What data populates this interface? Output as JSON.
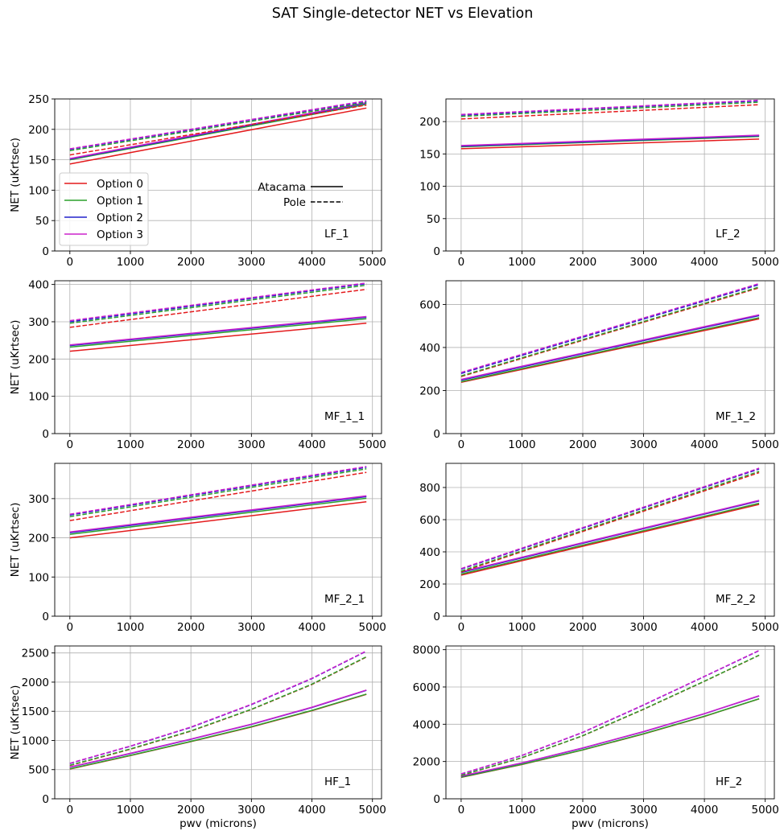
{
  "figure": {
    "suptitle": "SAT Single-detector NET vs Elevation"
  },
  "colors": {
    "Option 0": "#e41a1c",
    "Option 1": "#2ca02c",
    "Option 2": "#2222cc",
    "Option 3": "#cc22cc"
  },
  "legend_options": {
    "placement": "lower-left (LF_1 panel)",
    "entries": [
      "Option 0",
      "Option 1",
      "Option 2",
      "Option 3"
    ]
  },
  "legend_sites": {
    "placement": "center-right (LF_1 panel)",
    "entries": [
      {
        "label": "Atacama",
        "style": "solid"
      },
      {
        "label": "Pole",
        "style": "dashed"
      }
    ]
  },
  "chart_data": [
    {
      "type": "line",
      "panel": "LF_1",
      "ylabel": "NET (uKrtsec)",
      "xlabel": "",
      "x": [
        0,
        4900
      ],
      "xlim": [
        -250,
        5150
      ],
      "ylim": [
        0,
        250
      ],
      "xticks": [
        0,
        1000,
        2000,
        3000,
        4000,
        5000
      ],
      "yticks": [
        0,
        50,
        100,
        150,
        200,
        250
      ],
      "grid": true,
      "series": [
        {
          "name": "Option 0",
          "site": "Atacama",
          "values": [
            143,
            235
          ]
        },
        {
          "name": "Option 1",
          "site": "Atacama",
          "values": [
            150,
            241
          ]
        },
        {
          "name": "Option 2",
          "site": "Atacama",
          "values": [
            151,
            243
          ]
        },
        {
          "name": "Option 3",
          "site": "Atacama",
          "values": [
            152,
            244
          ]
        },
        {
          "name": "Option 0",
          "site": "Pole",
          "values": [
            158,
            240
          ]
        },
        {
          "name": "Option 1",
          "site": "Pole",
          "values": [
            165,
            244
          ]
        },
        {
          "name": "Option 2",
          "site": "Pole",
          "values": [
            167,
            246
          ]
        },
        {
          "name": "Option 3",
          "site": "Pole",
          "values": [
            168,
            247
          ]
        }
      ]
    },
    {
      "type": "line",
      "panel": "LF_2",
      "ylabel": "",
      "xlabel": "",
      "x": [
        0,
        4900
      ],
      "xlim": [
        -250,
        5150
      ],
      "ylim": [
        0,
        235
      ],
      "xticks": [
        0,
        1000,
        2000,
        3000,
        4000,
        5000
      ],
      "yticks": [
        0,
        50,
        100,
        150,
        200
      ],
      "grid": true,
      "series": [
        {
          "name": "Option 0",
          "site": "Atacama",
          "values": [
            158,
            173
          ]
        },
        {
          "name": "Option 1",
          "site": "Atacama",
          "values": [
            161,
            177
          ]
        },
        {
          "name": "Option 2",
          "site": "Atacama",
          "values": [
            162,
            178
          ]
        },
        {
          "name": "Option 3",
          "site": "Atacama",
          "values": [
            163,
            179
          ]
        },
        {
          "name": "Option 0",
          "site": "Pole",
          "values": [
            204,
            226
          ]
        },
        {
          "name": "Option 1",
          "site": "Pole",
          "values": [
            208,
            230
          ]
        },
        {
          "name": "Option 2",
          "site": "Pole",
          "values": [
            210,
            232
          ]
        },
        {
          "name": "Option 3",
          "site": "Pole",
          "values": [
            211,
            233
          ]
        }
      ]
    },
    {
      "type": "line",
      "panel": "MF_1_1",
      "ylabel": "NET (uKrtsec)",
      "xlabel": "",
      "x": [
        0,
        4900
      ],
      "xlim": [
        -250,
        5150
      ],
      "ylim": [
        0,
        410
      ],
      "xticks": [
        0,
        1000,
        2000,
        3000,
        4000,
        5000
      ],
      "yticks": [
        0,
        100,
        200,
        300,
        400
      ],
      "grid": true,
      "series": [
        {
          "name": "Option 0",
          "site": "Atacama",
          "values": [
            221,
            296
          ]
        },
        {
          "name": "Option 1",
          "site": "Atacama",
          "values": [
            232,
            308
          ]
        },
        {
          "name": "Option 2",
          "site": "Atacama",
          "values": [
            236,
            312
          ]
        },
        {
          "name": "Option 3",
          "site": "Atacama",
          "values": [
            238,
            314
          ]
        },
        {
          "name": "Option 0",
          "site": "Pole",
          "values": [
            285,
            387
          ]
        },
        {
          "name": "Option 1",
          "site": "Pole",
          "values": [
            296,
            398
          ]
        },
        {
          "name": "Option 2",
          "site": "Pole",
          "values": [
            300,
            402
          ]
        },
        {
          "name": "Option 3",
          "site": "Pole",
          "values": [
            303,
            404
          ]
        }
      ]
    },
    {
      "type": "line",
      "panel": "MF_1_2",
      "ylabel": "",
      "xlabel": "",
      "x": [
        0,
        4900
      ],
      "xlim": [
        -250,
        5150
      ],
      "ylim": [
        0,
        710
      ],
      "xticks": [
        0,
        1000,
        2000,
        3000,
        4000,
        5000
      ],
      "yticks": [
        0,
        200,
        400,
        600
      ],
      "grid": true,
      "series": [
        {
          "name": "Option 0",
          "site": "Atacama",
          "values": [
            238,
            533
          ]
        },
        {
          "name": "Option 1",
          "site": "Atacama",
          "values": [
            241,
            538
          ]
        },
        {
          "name": "Option 2",
          "site": "Atacama",
          "values": [
            248,
            548
          ]
        },
        {
          "name": "Option 3",
          "site": "Atacama",
          "values": [
            252,
            552
          ]
        },
        {
          "name": "Option 0",
          "site": "Pole",
          "values": [
            265,
            677
          ]
        },
        {
          "name": "Option 1",
          "site": "Pole",
          "values": [
            268,
            681
          ]
        },
        {
          "name": "Option 2",
          "site": "Pole",
          "values": [
            279,
            692
          ]
        },
        {
          "name": "Option 3",
          "site": "Pole",
          "values": [
            284,
            697
          ]
        }
      ]
    },
    {
      "type": "line",
      "panel": "MF_2_1",
      "ylabel": "NET (uKrtsec)",
      "xlabel": "",
      "x": [
        0,
        4900
      ],
      "xlim": [
        -250,
        5150
      ],
      "ylim": [
        0,
        390
      ],
      "xticks": [
        0,
        1000,
        2000,
        3000,
        4000,
        5000
      ],
      "yticks": [
        0,
        100,
        200,
        300
      ],
      "grid": true,
      "series": [
        {
          "name": "Option 0",
          "site": "Atacama",
          "values": [
            200,
            292
          ]
        },
        {
          "name": "Option 1",
          "site": "Atacama",
          "values": [
            209,
            301
          ]
        },
        {
          "name": "Option 2",
          "site": "Atacama",
          "values": [
            213,
            305
          ]
        },
        {
          "name": "Option 3",
          "site": "Atacama",
          "values": [
            215,
            307
          ]
        },
        {
          "name": "Option 0",
          "site": "Pole",
          "values": [
            244,
            367
          ]
        },
        {
          "name": "Option 1",
          "site": "Pole",
          "values": [
            254,
            376
          ]
        },
        {
          "name": "Option 2",
          "site": "Pole",
          "values": [
            258,
            380
          ]
        },
        {
          "name": "Option 3",
          "site": "Pole",
          "values": [
            260,
            382
          ]
        }
      ]
    },
    {
      "type": "line",
      "panel": "MF_2_2",
      "ylabel": "",
      "xlabel": "",
      "x": [
        0,
        4900
      ],
      "xlim": [
        -250,
        5150
      ],
      "ylim": [
        0,
        950
      ],
      "xticks": [
        0,
        1000,
        2000,
        3000,
        4000,
        5000
      ],
      "yticks": [
        0,
        200,
        400,
        600,
        800
      ],
      "grid": true,
      "series": [
        {
          "name": "Option 0",
          "site": "Atacama",
          "values": [
            255,
            695
          ]
        },
        {
          "name": "Option 1",
          "site": "Atacama",
          "values": [
            262,
            702
          ]
        },
        {
          "name": "Option 2",
          "site": "Atacama",
          "values": [
            272,
            716
          ]
        },
        {
          "name": "Option 3",
          "site": "Atacama",
          "values": [
            276,
            720
          ]
        },
        {
          "name": "Option 0",
          "site": "Pole",
          "values": [
            275,
            892
          ]
        },
        {
          "name": "Option 1",
          "site": "Pole",
          "values": [
            280,
            900
          ]
        },
        {
          "name": "Option 2",
          "site": "Pole",
          "values": [
            292,
            915
          ]
        },
        {
          "name": "Option 3",
          "site": "Pole",
          "values": [
            296,
            920
          ]
        }
      ]
    },
    {
      "type": "line",
      "panel": "HF_1",
      "ylabel": "NET (uKrtsec)",
      "xlabel": "pwv (microns)",
      "x": [
        0,
        1000,
        2000,
        3000,
        4000,
        4900
      ],
      "xlim": [
        -250,
        5150
      ],
      "ylim": [
        0,
        2620
      ],
      "xticks": [
        0,
        1000,
        2000,
        3000,
        4000,
        5000
      ],
      "yticks": [
        0,
        500,
        1000,
        1500,
        2000,
        2500
      ],
      "grid": true,
      "series": [
        {
          "name": "Option 0",
          "site": "Atacama",
          "values": [
            510,
            740,
            980,
            1230,
            1510,
            1790
          ]
        },
        {
          "name": "Option 1",
          "site": "Atacama",
          "values": [
            515,
            745,
            985,
            1235,
            1515,
            1795
          ]
        },
        {
          "name": "Option 2",
          "site": "Atacama",
          "values": [
            540,
            775,
            1020,
            1275,
            1565,
            1860
          ]
        },
        {
          "name": "Option 3",
          "site": "Atacama",
          "values": [
            545,
            780,
            1025,
            1280,
            1570,
            1865
          ]
        },
        {
          "name": "Option 0",
          "site": "Pole",
          "values": [
            570,
            850,
            1160,
            1530,
            1960,
            2430
          ]
        },
        {
          "name": "Option 1",
          "site": "Pole",
          "values": [
            575,
            855,
            1165,
            1535,
            1965,
            2435
          ]
        },
        {
          "name": "Option 2",
          "site": "Pole",
          "values": [
            605,
            900,
            1225,
            1615,
            2060,
            2530
          ]
        },
        {
          "name": "Option 3",
          "site": "Pole",
          "values": [
            610,
            905,
            1230,
            1620,
            2065,
            2535
          ]
        }
      ]
    },
    {
      "type": "line",
      "panel": "HF_2",
      "ylabel": "",
      "xlabel": "pwv (microns)",
      "x": [
        0,
        1000,
        2000,
        3000,
        4000,
        4900
      ],
      "xlim": [
        -250,
        5150
      ],
      "ylim": [
        0,
        8200
      ],
      "xticks": [
        0,
        1000,
        2000,
        3000,
        4000,
        5000
      ],
      "yticks": [
        0,
        2000,
        4000,
        6000,
        8000
      ],
      "grid": true,
      "series": [
        {
          "name": "Option 0",
          "site": "Atacama",
          "values": [
            1150,
            1840,
            2620,
            3480,
            4420,
            5360
          ]
        },
        {
          "name": "Option 1",
          "site": "Atacama",
          "values": [
            1160,
            1850,
            2630,
            3490,
            4430,
            5370
          ]
        },
        {
          "name": "Option 2",
          "site": "Atacama",
          "values": [
            1210,
            1920,
            2720,
            3600,
            4560,
            5520
          ]
        },
        {
          "name": "Option 3",
          "site": "Atacama",
          "values": [
            1220,
            1930,
            2730,
            3610,
            4570,
            5530
          ]
        },
        {
          "name": "Option 0",
          "site": "Pole",
          "values": [
            1250,
            2200,
            3380,
            4800,
            6300,
            7700
          ]
        },
        {
          "name": "Option 1",
          "site": "Pole",
          "values": [
            1260,
            2210,
            3390,
            4810,
            6310,
            7710
          ]
        },
        {
          "name": "Option 2",
          "site": "Pole",
          "values": [
            1330,
            2320,
            3560,
            5030,
            6560,
            7950
          ]
        },
        {
          "name": "Option 3",
          "site": "Pole",
          "values": [
            1340,
            2330,
            3570,
            5040,
            6570,
            7960
          ]
        }
      ]
    }
  ]
}
